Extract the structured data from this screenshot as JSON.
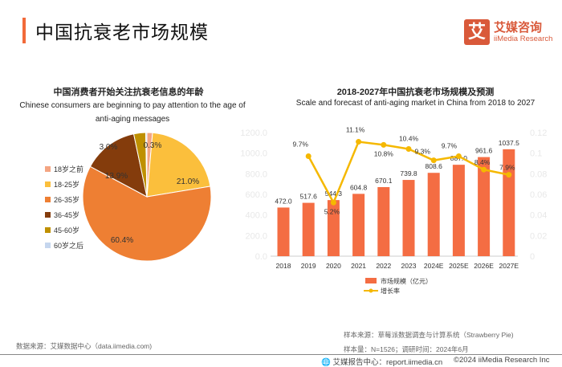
{
  "page_title": "中国抗衰老市场规模",
  "logo": {
    "cn": "艾媒咨询",
    "en": "iiMedia Research",
    "mark": "艾"
  },
  "colors": {
    "accent": "#f26a3a",
    "bar": "#f46d43",
    "line": "#f5b800"
  },
  "chart_data": [
    {
      "type": "pie",
      "title": "中国消费者开始关注抗衰老信息的年龄",
      "subtitle": "Chinese consumers are beginning to pay attention to the age of anti-aging messages",
      "legend_position": "left",
      "slices": [
        {
          "label": "18岁之前",
          "value": 1.4,
          "display": "1.4%",
          "color": "#f4a582"
        },
        {
          "label": "18-25岁",
          "value": 21.0,
          "display": "21.0%",
          "color": "#fbbf3c"
        },
        {
          "label": "26-35岁",
          "value": 60.4,
          "display": "60.4%",
          "color": "#ee7f33"
        },
        {
          "label": "36-45岁",
          "value": 13.9,
          "display": "13.9%",
          "color": "#843c0c"
        },
        {
          "label": "45-60岁",
          "value": 3.0,
          "display": "3.0%",
          "color": "#bf9000"
        },
        {
          "label": "60岁之后",
          "value": 0.3,
          "display": "0.3%",
          "color": "#c5d6ee"
        }
      ]
    },
    {
      "type": "bar+line",
      "title": "2018-2027年中国抗衰老市场规模及预测",
      "subtitle": "Scale and forecast of anti-aging market in China from 2018 to 2027",
      "categories": [
        "2018",
        "2019",
        "2020",
        "2021",
        "2022",
        "2023",
        "2024E",
        "2025E",
        "2026E",
        "2027E"
      ],
      "y_left": {
        "range": [
          0,
          1200
        ],
        "ticks": [
          "0.0",
          "200.0",
          "400.0",
          "600.0",
          "800.0",
          "1000.0",
          "1200.0"
        ]
      },
      "y_right": {
        "range": [
          0,
          0.12
        ],
        "ticks": [
          "0",
          "0.02",
          "0.04",
          "0.06",
          "0.08",
          "0.1",
          "0.12"
        ]
      },
      "legend_position": "bottom",
      "series": [
        {
          "name": "市场规模（亿元）",
          "type": "bar",
          "values": [
            472.0,
            517.6,
            544.3,
            604.8,
            670.1,
            739.8,
            808.6,
            887.0,
            961.6,
            1037.5
          ],
          "labels": [
            "472.0",
            "517.6",
            "544.3",
            "604.8",
            "670.1",
            "739.8",
            "808.6",
            "887.0",
            "961.6",
            "1037.5"
          ]
        },
        {
          "name": "增长率",
          "type": "line",
          "values": [
            null,
            0.097,
            0.052,
            0.111,
            0.108,
            0.104,
            0.093,
            0.097,
            0.084,
            0.079
          ],
          "labels": [
            "",
            "9.7%",
            "5.2%",
            "11.1%",
            "10.8%",
            "10.4%",
            "9.3%",
            "9.7%",
            "8.4%",
            "7.9%"
          ]
        }
      ]
    }
  ],
  "footer": {
    "source_left": "数据来源：艾媒数据中心（data.iimedia.com)",
    "sample_source": "样本来源：草莓派数据调查与计算系统（Strawberry Pie)",
    "sample_size": "样本量：N=1526；调研时间：2024年6月",
    "report_center": "艾媒报告中心：report.iimedia.cn",
    "copyright": "©2024  iiMedia Research  Inc"
  }
}
